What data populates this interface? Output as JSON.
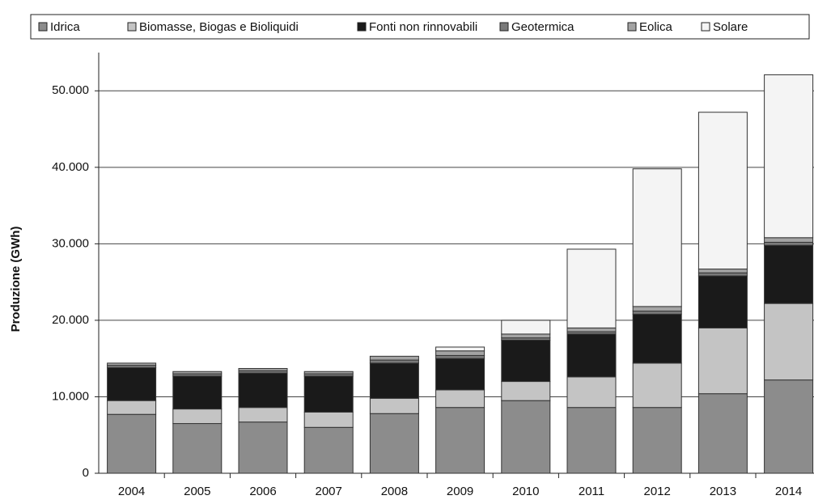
{
  "chart_data": {
    "type": "stacked_bar",
    "y_label": "Produzione (GWh)",
    "categories": [
      "2004",
      "2005",
      "2006",
      "2007",
      "2008",
      "2009",
      "2010",
      "2011",
      "2012",
      "2013",
      "2014"
    ],
    "series": [
      {
        "name": "Idrica",
        "color": "#8c8c8c",
        "values": [
          7700,
          6500,
          6700,
          6000,
          7800,
          8600,
          9500,
          8600,
          8600,
          10400,
          12200
        ]
      },
      {
        "name": "Biomasse, Biogas e Bioliquidi",
        "color": "#c4c4c4",
        "values": [
          1800,
          1900,
          1900,
          2000,
          2000,
          2300,
          2500,
          4000,
          5800,
          8600,
          10000
        ]
      },
      {
        "name": "Fonti non rinnovabili",
        "color": "#1a1a1a",
        "values": [
          4300,
          4300,
          4500,
          4700,
          4600,
          4100,
          5400,
          5600,
          6400,
          6800,
          7600
        ]
      },
      {
        "name": "Geotermica",
        "color": "#7a7a7a",
        "values": [
          300,
          300,
          300,
          300,
          400,
          400,
          300,
          300,
          400,
          400,
          400
        ]
      },
      {
        "name": "Eolica",
        "color": "#a3a3a3",
        "values": [
          300,
          300,
          300,
          300,
          500,
          600,
          500,
          500,
          600,
          500,
          600
        ]
      },
      {
        "name": "Solare",
        "color": "#f4f4f4",
        "values": [
          0,
          0,
          0,
          0,
          0,
          500,
          1800,
          10300,
          18000,
          20500,
          21300
        ]
      }
    ],
    "ylim": [
      0,
      55000
    ],
    "yticks": [
      0,
      {
        "value": 10000,
        "label": "10.000"
      },
      {
        "value": 20000,
        "label": "20.000"
      },
      {
        "value": 30000,
        "label": "30.000"
      },
      {
        "value": 40000,
        "label": "40.000"
      },
      {
        "value": 50000,
        "label": "50.000"
      }
    ],
    "grid": true
  }
}
